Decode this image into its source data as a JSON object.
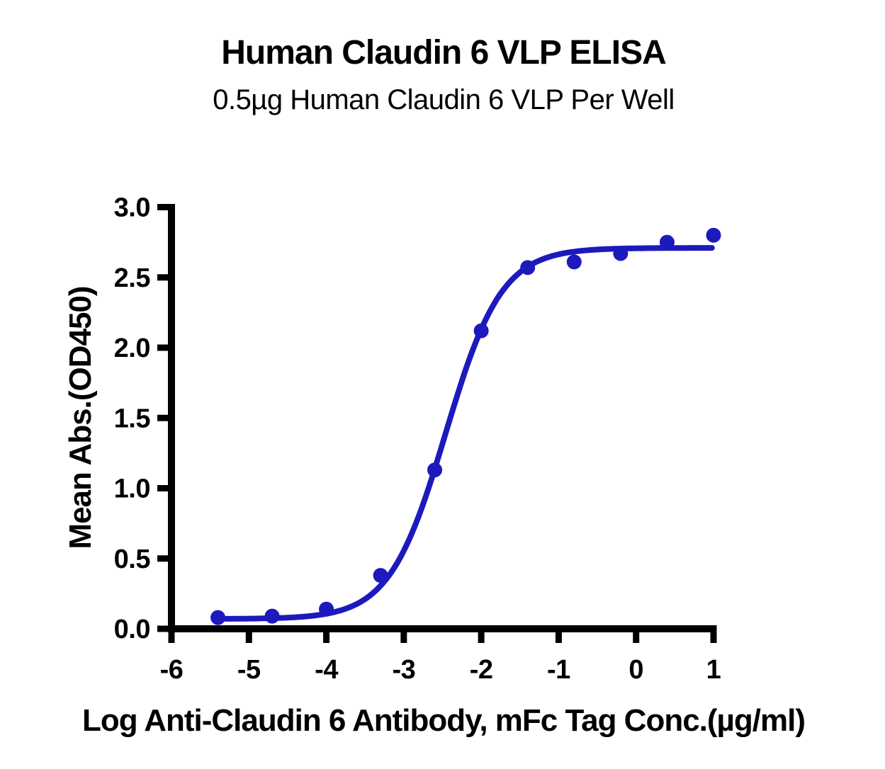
{
  "chart_data": {
    "type": "scatter",
    "title": "Human Claudin 6 VLP ELISA",
    "subtitle": "0.5µg Human Claudin 6 VLP Per Well",
    "xlabel": "Log Anti-Claudin 6 Antibody, mFc Tag Conc.(µg/ml)",
    "ylabel": "Mean Abs.(OD450)",
    "xlim": [
      -6,
      1
    ],
    "ylim": [
      0,
      3
    ],
    "grid": false,
    "legend": "none",
    "xticks": [
      {
        "v": -6,
        "label": "-6"
      },
      {
        "v": -5,
        "label": "-5"
      },
      {
        "v": -4,
        "label": "-4"
      },
      {
        "v": -3,
        "label": "-3"
      },
      {
        "v": -2,
        "label": "-2"
      },
      {
        "v": -1,
        "label": "-1"
      },
      {
        "v": 0,
        "label": "0"
      },
      {
        "v": 1,
        "label": "1"
      }
    ],
    "yticks": [
      {
        "v": 0.0,
        "label": "0.0"
      },
      {
        "v": 0.5,
        "label": "0.5"
      },
      {
        "v": 1.0,
        "label": "1.0"
      },
      {
        "v": 1.5,
        "label": "1.5"
      },
      {
        "v": 2.0,
        "label": "2.0"
      },
      {
        "v": 2.5,
        "label": "2.5"
      },
      {
        "v": 3.0,
        "label": "3.0"
      }
    ],
    "series": [
      {
        "marker": "circle",
        "color": "#1c1abc",
        "x": [
          -5.4,
          -4.7,
          -4.0,
          -3.3,
          -2.6,
          -2.0,
          -1.4,
          -0.8,
          -0.2,
          0.4,
          1.0
        ],
        "y": [
          0.08,
          0.09,
          0.14,
          0.38,
          1.13,
          2.12,
          2.57,
          2.61,
          2.67,
          2.75,
          2.8
        ]
      }
    ],
    "fit_curve": {
      "model": "4PL",
      "bottom": 0.07,
      "top": 2.71,
      "logEC50": -2.46,
      "hillslope": 1.2,
      "x_range": [
        -5.41,
        0.98
      ],
      "color": "#1c1abc"
    },
    "axis_color": "#000000",
    "text_color": "#000000"
  }
}
